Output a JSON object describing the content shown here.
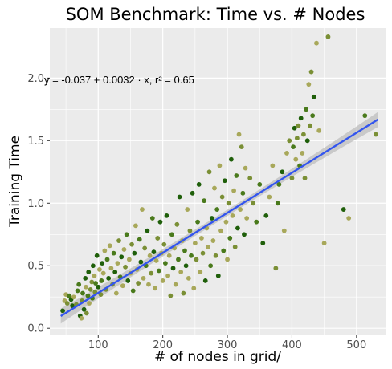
{
  "chart_data": {
    "type": "scatter",
    "title": "SOM Benchmark: Time vs. # Nodes",
    "xlabel": "# of nodes in grid/",
    "ylabel": "Training Time",
    "xlim": [
      25,
      545
    ],
    "ylim": [
      -0.05,
      2.4
    ],
    "x_ticks": [
      100,
      200,
      300,
      400,
      500
    ],
    "y_ticks": [
      0.0,
      0.5,
      1.0,
      1.5,
      2.0
    ],
    "y_tick_labels": [
      "0.0",
      "0.5",
      "1.0",
      "1.5",
      "2.0"
    ],
    "grid": true,
    "annotation": "y = -0.037 + 0.0032 · x,  r² = 0.65",
    "regression": {
      "intercept": -0.037,
      "slope": 0.0032,
      "x_range": [
        42,
        533
      ],
      "ci_halfwidth_ends": 0.06,
      "ci_halfwidth_mid": 0.025
    },
    "point_colors": [
      "#1f5f0a",
      "#4a7a1c",
      "#7a8f35",
      "#a8a85a"
    ],
    "line_color": "#3355ee",
    "band_color": "#bdbdbd",
    "points": [
      [
        45,
        0.14
      ],
      [
        48,
        0.22
      ],
      [
        50,
        0.27
      ],
      [
        52,
        0.2
      ],
      [
        55,
        0.26
      ],
      [
        58,
        0.23
      ],
      [
        60,
        0.18
      ],
      [
        62,
        0.25
      ],
      [
        66,
        0.19
      ],
      [
        68,
        0.3
      ],
      [
        70,
        0.35
      ],
      [
        72,
        0.1
      ],
      [
        74,
        0.08
      ],
      [
        75,
        0.22
      ],
      [
        76,
        0.28
      ],
      [
        78,
        0.15
      ],
      [
        80,
        0.4
      ],
      [
        81,
        0.33
      ],
      [
        82,
        0.12
      ],
      [
        84,
        0.26
      ],
      [
        85,
        0.45
      ],
      [
        86,
        0.2
      ],
      [
        88,
        0.31
      ],
      [
        90,
        0.37
      ],
      [
        91,
        0.24
      ],
      [
        92,
        0.5
      ],
      [
        94,
        0.42
      ],
      [
        95,
        0.29
      ],
      [
        96,
        0.36
      ],
      [
        98,
        0.58
      ],
      [
        100,
        0.33
      ],
      [
        102,
        0.47
      ],
      [
        104,
        0.27
      ],
      [
        105,
        0.38
      ],
      [
        106,
        0.52
      ],
      [
        108,
        0.44
      ],
      [
        110,
        0.62
      ],
      [
        112,
        0.31
      ],
      [
        114,
        0.55
      ],
      [
        116,
        0.4
      ],
      [
        118,
        0.66
      ],
      [
        120,
        0.48
      ],
      [
        122,
        0.35
      ],
      [
        124,
        0.6
      ],
      [
        126,
        0.45
      ],
      [
        128,
        0.28
      ],
      [
        130,
        0.52
      ],
      [
        132,
        0.7
      ],
      [
        134,
        0.41
      ],
      [
        136,
        0.57
      ],
      [
        138,
        0.34
      ],
      [
        140,
        0.63
      ],
      [
        142,
        0.49
      ],
      [
        144,
        0.75
      ],
      [
        146,
        0.38
      ],
      [
        148,
        0.55
      ],
      [
        150,
        0.44
      ],
      [
        152,
        0.67
      ],
      [
        154,
        0.3
      ],
      [
        156,
        0.6
      ],
      [
        158,
        0.82
      ],
      [
        160,
        0.47
      ],
      [
        162,
        0.36
      ],
      [
        164,
        0.71
      ],
      [
        166,
        0.53
      ],
      [
        168,
        0.95
      ],
      [
        170,
        0.4
      ],
      [
        172,
        0.64
      ],
      [
        174,
        0.5
      ],
      [
        176,
        0.78
      ],
      [
        178,
        0.35
      ],
      [
        180,
        0.58
      ],
      [
        182,
        0.44
      ],
      [
        184,
        0.88
      ],
      [
        186,
        0.61
      ],
      [
        188,
        0.32
      ],
      [
        190,
        0.54
      ],
      [
        192,
        0.72
      ],
      [
        194,
        0.46
      ],
      [
        196,
        0.85
      ],
      [
        198,
        0.6
      ],
      [
        200,
        0.38
      ],
      [
        202,
        0.67
      ],
      [
        204,
        0.52
      ],
      [
        206,
        0.9
      ],
      [
        208,
        0.42
      ],
      [
        210,
        0.58
      ],
      [
        212,
        0.26
      ],
      [
        214,
        0.75
      ],
      [
        216,
        0.48
      ],
      [
        218,
        0.64
      ],
      [
        220,
        0.35
      ],
      [
        222,
        0.83
      ],
      [
        224,
        0.55
      ],
      [
        226,
        1.05
      ],
      [
        228,
        0.45
      ],
      [
        230,
        0.7
      ],
      [
        232,
        0.28
      ],
      [
        234,
        0.62
      ],
      [
        236,
        0.5
      ],
      [
        238,
        0.95
      ],
      [
        240,
        0.4
      ],
      [
        242,
        0.78
      ],
      [
        244,
        0.58
      ],
      [
        246,
        1.08
      ],
      [
        248,
        0.32
      ],
      [
        250,
        0.68
      ],
      [
        252,
        0.55
      ],
      [
        254,
        0.85
      ],
      [
        256,
        1.15
      ],
      [
        258,
        0.45
      ],
      [
        260,
        0.72
      ],
      [
        262,
        0.6
      ],
      [
        264,
        1.02
      ],
      [
        266,
        0.38
      ],
      [
        268,
        0.8
      ],
      [
        270,
        0.65
      ],
      [
        272,
        1.25
      ],
      [
        274,
        0.5
      ],
      [
        276,
        0.88
      ],
      [
        278,
        0.7
      ],
      [
        280,
        1.12
      ],
      [
        282,
        0.58
      ],
      [
        284,
        0.95
      ],
      [
        286,
        0.42
      ],
      [
        288,
        1.3
      ],
      [
        290,
        0.78
      ],
      [
        292,
        1.05
      ],
      [
        294,
        0.62
      ],
      [
        296,
        1.18
      ],
      [
        298,
        0.85
      ],
      [
        300,
        0.55
      ],
      [
        302,
        1.0
      ],
      [
        304,
        0.72
      ],
      [
        306,
        1.35
      ],
      [
        308,
        0.9
      ],
      [
        310,
        1.1
      ],
      [
        312,
        0.65
      ],
      [
        314,
        1.22
      ],
      [
        316,
        0.8
      ],
      [
        318,
        1.55
      ],
      [
        320,
        0.95
      ],
      [
        322,
        1.45
      ],
      [
        324,
        1.08
      ],
      [
        326,
        0.75
      ],
      [
        328,
        1.28
      ],
      [
        330,
        0.88
      ],
      [
        335,
        1.2
      ],
      [
        340,
        1.0
      ],
      [
        345,
        0.85
      ],
      [
        350,
        1.15
      ],
      [
        355,
        0.68
      ],
      [
        360,
        0.9
      ],
      [
        365,
        1.05
      ],
      [
        370,
        1.3
      ],
      [
        375,
        0.48
      ],
      [
        378,
        1.0
      ],
      [
        380,
        1.15
      ],
      [
        385,
        1.25
      ],
      [
        388,
        0.78
      ],
      [
        392,
        1.4
      ],
      [
        396,
        1.5
      ],
      [
        400,
        1.2
      ],
      [
        402,
        1.45
      ],
      [
        404,
        1.6
      ],
      [
        406,
        1.35
      ],
      [
        408,
        1.52
      ],
      [
        410,
        1.62
      ],
      [
        412,
        1.3
      ],
      [
        414,
        1.68
      ],
      [
        416,
        1.4
      ],
      [
        418,
        1.55
      ],
      [
        420,
        1.2
      ],
      [
        422,
        1.75
      ],
      [
        424,
        1.5
      ],
      [
        426,
        1.95
      ],
      [
        428,
        1.62
      ],
      [
        430,
        2.05
      ],
      [
        432,
        1.7
      ],
      [
        434,
        1.85
      ],
      [
        438,
        2.28
      ],
      [
        442,
        1.58
      ],
      [
        450,
        0.68
      ],
      [
        456,
        2.33
      ],
      [
        480,
        0.95
      ],
      [
        488,
        0.88
      ],
      [
        513,
        1.7
      ],
      [
        530,
        1.55
      ]
    ]
  }
}
